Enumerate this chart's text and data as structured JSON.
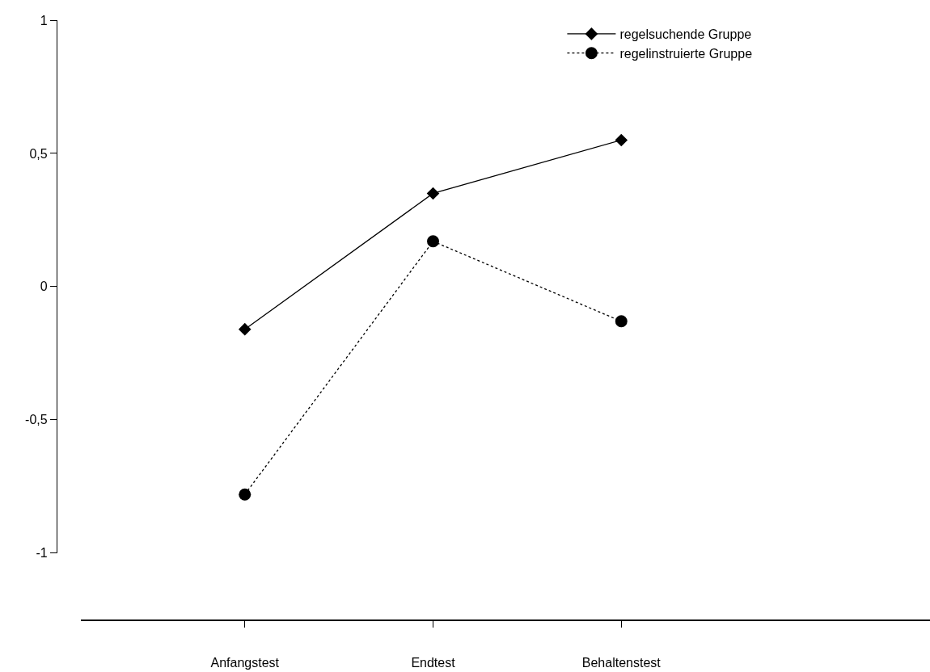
{
  "chart_data": {
    "type": "line",
    "categories": [
      "Anfangstest",
      "Endtest",
      "Behaltenstest"
    ],
    "series": [
      {
        "name": "regelsuchende Gruppe",
        "color": "#000000",
        "marker": "diamond",
        "line_style": "solid",
        "values": [
          -0.16,
          0.35,
          0.55
        ]
      },
      {
        "name": "regelinstruierte Gruppe",
        "color": "#000000",
        "marker": "circle",
        "line_style": "dotted",
        "values": [
          -0.78,
          0.17,
          -0.13
        ]
      }
    ],
    "ylim": [
      -1,
      1
    ],
    "yticks": [
      {
        "value": -1,
        "label": "-1"
      },
      {
        "value": -0.5,
        "label": "-0,5"
      },
      {
        "value": 0,
        "label": "0"
      },
      {
        "value": 0.5,
        "label": "0,5"
      },
      {
        "value": 1,
        "label": "1"
      }
    ],
    "legend": "top right"
  }
}
